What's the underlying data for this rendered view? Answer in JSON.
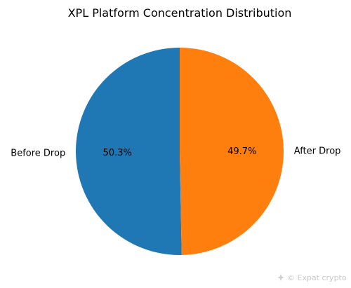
{
  "chart_data": {
    "type": "pie",
    "title": "XPL Platform Concentration Distribution",
    "categories": [
      "Before Drop",
      "After Drop"
    ],
    "values": [
      50.3,
      49.7
    ],
    "percent_labels": [
      "50.3%",
      "49.7%"
    ],
    "colors": [
      "#1f77b4",
      "#ff7f0e"
    ],
    "start_angle_deg": 90,
    "direction": "counterclockwise",
    "legend": "none"
  },
  "watermark": {
    "text": "© Expat crypto",
    "icon": "sparkle-logo-icon"
  }
}
